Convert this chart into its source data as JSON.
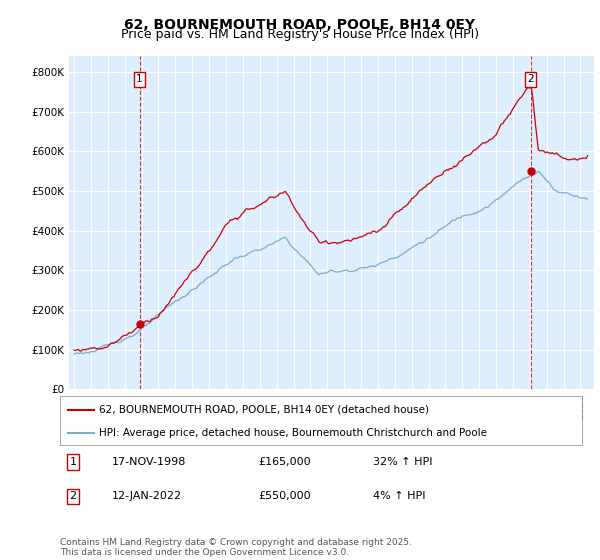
{
  "title": "62, BOURNEMOUTH ROAD, POOLE, BH14 0EY",
  "subtitle": "Price paid vs. HM Land Registry's House Price Index (HPI)",
  "ylabel_ticks": [
    "£0",
    "£100K",
    "£200K",
    "£300K",
    "£400K",
    "£500K",
    "£600K",
    "£700K",
    "£800K"
  ],
  "ytick_values": [
    0,
    100000,
    200000,
    300000,
    400000,
    500000,
    600000,
    700000,
    800000
  ],
  "ylim": [
    0,
    840000
  ],
  "xlim_start": 1994.7,
  "xlim_end": 2025.8,
  "sale1_date": 1998.88,
  "sale1_price": 165000,
  "sale1_label": "1",
  "sale2_date": 2022.04,
  "sale2_price": 550000,
  "sale2_label": "2",
  "red_color": "#cc0000",
  "blue_color": "#7aadcc",
  "background_color": "#ddeeff",
  "grid_color": "#ffffff",
  "legend_line1": "62, BOURNEMOUTH ROAD, POOLE, BH14 0EY (detached house)",
  "legend_line2": "HPI: Average price, detached house, Bournemouth Christchurch and Poole",
  "table_row1": [
    "1",
    "17-NOV-1998",
    "£165,000",
    "32% ↑ HPI"
  ],
  "table_row2": [
    "2",
    "12-JAN-2022",
    "£550,000",
    "4% ↑ HPI"
  ],
  "footnote": "Contains HM Land Registry data © Crown copyright and database right 2025.\nThis data is licensed under the Open Government Licence v3.0.",
  "title_fontsize": 10,
  "subtitle_fontsize": 9,
  "tick_fontsize": 7.5,
  "legend_fontsize": 7.5,
  "table_fontsize": 8,
  "footnote_fontsize": 6.5
}
